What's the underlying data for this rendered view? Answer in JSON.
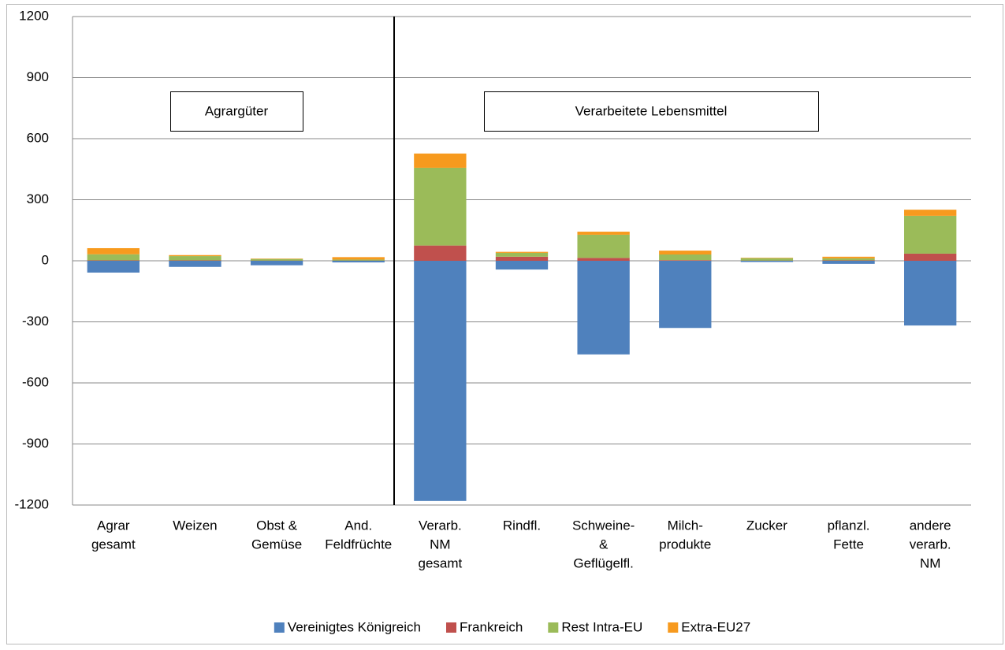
{
  "chart_data": {
    "type": "stacked-bar",
    "categories": [
      [
        "Agrar",
        "gesamt"
      ],
      [
        "Weizen"
      ],
      [
        "Obst &",
        "Gemüse"
      ],
      [
        "And.",
        "Feldfrüchte"
      ],
      [
        "Verarb.",
        "NM",
        "gesamt"
      ],
      [
        "Rindfl."
      ],
      [
        "Schweine-",
        "&",
        "Geflügelfl."
      ],
      [
        "Milch-",
        "produkte"
      ],
      [
        "Zucker"
      ],
      [
        "pflanzl.",
        "Fette"
      ],
      [
        "andere",
        "verarb.",
        "NM"
      ]
    ],
    "series": [
      {
        "name": "Vereinigtes Königreich",
        "color": "#4f81bd",
        "values": [
          -58,
          -30,
          -22,
          -8,
          -1180,
          -43,
          -460,
          -330,
          -6,
          -15,
          -318
        ]
      },
      {
        "name": "Frankreich",
        "color": "#c0504d",
        "values": [
          2,
          2,
          1,
          1,
          75,
          20,
          14,
          3,
          1,
          2,
          35
        ]
      },
      {
        "name": "Rest Intra-EU",
        "color": "#9bbb59",
        "values": [
          30,
          21,
          8,
          5,
          382,
          19,
          114,
          28,
          12,
          10,
          186
        ]
      },
      {
        "name": "Extra-EU27",
        "color": "#f79a1e",
        "values": [
          30,
          5,
          2,
          12,
          70,
          5,
          15,
          19,
          2,
          8,
          30
        ]
      }
    ],
    "ylim": [
      -1200,
      1200
    ],
    "yticks": [
      -1200,
      -900,
      -600,
      -300,
      0,
      300,
      600,
      900,
      1200
    ],
    "grid": true,
    "annotations": [
      "Agrargüter",
      "Verarbeitete Lebensmittel"
    ]
  }
}
